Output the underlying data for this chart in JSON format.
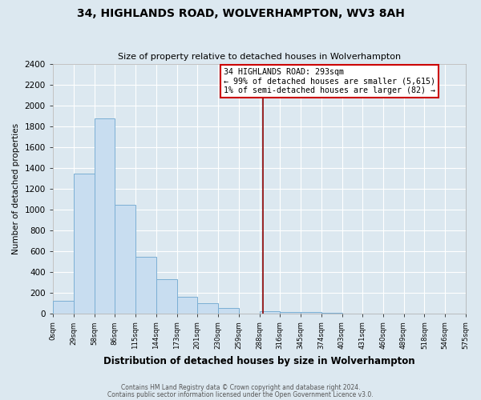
{
  "title": "34, HIGHLANDS ROAD, WOLVERHAMPTON, WV3 8AH",
  "subtitle": "Size of property relative to detached houses in Wolverhampton",
  "xlabel": "Distribution of detached houses by size in Wolverhampton",
  "ylabel": "Number of detached properties",
  "bar_color": "#c8ddf0",
  "bar_edge_color": "#7bafd4",
  "bin_edges": [
    0,
    29,
    58,
    86,
    115,
    144,
    173,
    201,
    230,
    259,
    288,
    316,
    345,
    374,
    403,
    431,
    460,
    489,
    518,
    546,
    575
  ],
  "bin_labels": [
    "0sqm",
    "29sqm",
    "58sqm",
    "86sqm",
    "115sqm",
    "144sqm",
    "173sqm",
    "201sqm",
    "230sqm",
    "259sqm",
    "288sqm",
    "316sqm",
    "345sqm",
    "374sqm",
    "403sqm",
    "431sqm",
    "460sqm",
    "489sqm",
    "518sqm",
    "546sqm",
    "575sqm"
  ],
  "counts": [
    125,
    1350,
    1880,
    1050,
    545,
    335,
    165,
    105,
    55,
    0,
    28,
    20,
    15,
    10,
    0,
    5,
    0,
    0,
    5,
    0
  ],
  "property_line_x": 293,
  "annotation_line1": "34 HIGHLANDS ROAD: 293sqm",
  "annotation_line2": "← 99% of detached houses are smaller (5,615)",
  "annotation_line3": "1% of semi-detached houses are larger (82) →",
  "annotation_box_color": "#ffffff",
  "annotation_box_edge": "#cc0000",
  "vline_color": "#8b0000",
  "ylim": [
    0,
    2400
  ],
  "yticks": [
    0,
    200,
    400,
    600,
    800,
    1000,
    1200,
    1400,
    1600,
    1800,
    2000,
    2200,
    2400
  ],
  "footer_line1": "Contains HM Land Registry data © Crown copyright and database right 2024.",
  "footer_line2": "Contains public sector information licensed under the Open Government Licence v3.0.",
  "background_color": "#dce8f0",
  "grid_color": "#ffffff",
  "spine_color": "#aaaaaa"
}
